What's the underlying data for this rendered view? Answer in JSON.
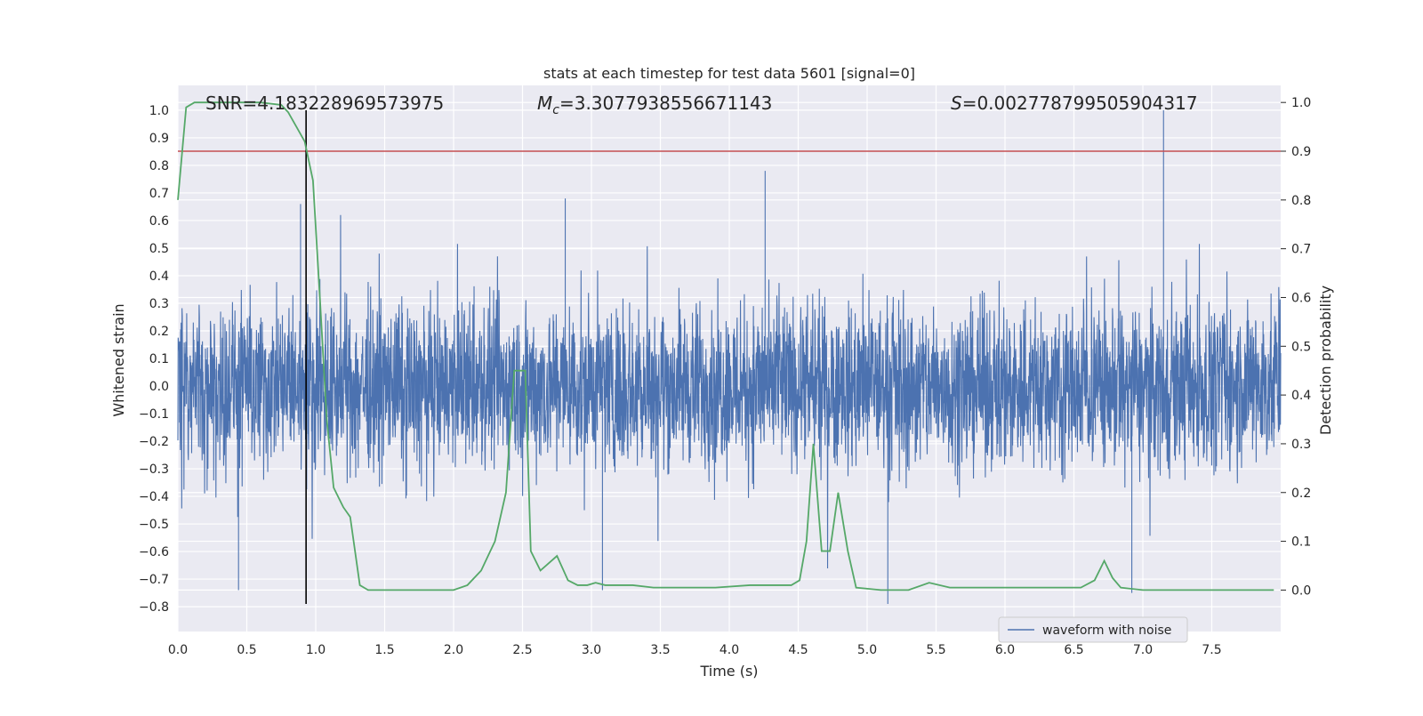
{
  "chart_data": {
    "type": "line",
    "title": "stats at each timestep for test data 5601 [signal=0]",
    "xlabel": "Time (s)",
    "ylabel": "Whitened strain",
    "ylabel_right": "Detection probability",
    "xlim": [
      0,
      8
    ],
    "ylim_left": [
      -0.89,
      1.09
    ],
    "ylim_right": [
      -0.085,
      1.035
    ],
    "x_ticks": [
      0.0,
      0.5,
      1.0,
      1.5,
      2.0,
      2.5,
      3.0,
      3.5,
      4.0,
      4.5,
      5.0,
      5.5,
      6.0,
      6.5,
      7.0,
      7.5
    ],
    "x_tick_labels": [
      "0.0",
      "0.5",
      "1.0",
      "1.5",
      "2.0",
      "2.5",
      "3.0",
      "3.5",
      "4.0",
      "4.5",
      "5.0",
      "5.5",
      "6.0",
      "6.5",
      "7.0",
      "7.5"
    ],
    "y_ticks_left": [
      -0.8,
      -0.7,
      -0.6,
      -0.5,
      -0.4,
      -0.3,
      -0.2,
      -0.1,
      0.0,
      0.1,
      0.2,
      0.3,
      0.4,
      0.5,
      0.6,
      0.7,
      0.8,
      0.9,
      1.0
    ],
    "y_tick_labels_left": [
      "−0.8",
      "−0.7",
      "−0.6",
      "−0.5",
      "−0.4",
      "−0.3",
      "−0.2",
      "−0.1",
      "0.0",
      "0.1",
      "0.2",
      "0.3",
      "0.4",
      "0.5",
      "0.6",
      "0.7",
      "0.8",
      "0.9",
      "1.0"
    ],
    "y_ticks_right": [
      0.0,
      0.1,
      0.2,
      0.3,
      0.4,
      0.5,
      0.6,
      0.7,
      0.8,
      0.9,
      1.0
    ],
    "y_tick_labels_right": [
      "0.0",
      "0.1",
      "0.2",
      "0.3",
      "0.4",
      "0.5",
      "0.6",
      "0.7",
      "0.8",
      "0.9",
      "1.0"
    ],
    "grid": true,
    "legend_position": "lower-right",
    "annotations": {
      "snr": "SNR=4.183228969573975",
      "mc_symbol": "M",
      "mc_sub": "c",
      "mc_value": "=3.3077938556671143",
      "s_symbol": "S",
      "s_value": "=0.002778799505904317"
    },
    "series": [
      {
        "name": "waveform with noise",
        "axis": "left",
        "color": "#4c72b0",
        "envelope_typical": [
          -0.27,
          0.29
        ],
        "sample_count": 4000,
        "notable_peaks": [
          {
            "x": 0.89,
            "y": 0.66
          },
          {
            "x": 0.44,
            "y": -0.74
          },
          {
            "x": 2.81,
            "y": 0.68
          },
          {
            "x": 3.08,
            "y": -0.74
          },
          {
            "x": 4.26,
            "y": 0.78
          },
          {
            "x": 5.15,
            "y": -0.79
          },
          {
            "x": 7.15,
            "y": 1.0
          },
          {
            "x": 6.92,
            "y": -0.75
          }
        ]
      },
      {
        "name": "detection probability",
        "axis": "right",
        "color": "#55a868",
        "x": [
          0.0,
          0.06,
          0.12,
          0.2,
          0.4,
          0.6,
          0.75,
          0.8,
          0.86,
          0.92,
          0.98,
          1.03,
          1.08,
          1.13,
          1.2,
          1.25,
          1.32,
          1.38,
          1.5,
          1.65,
          1.8,
          2.0,
          2.1,
          2.2,
          2.3,
          2.38,
          2.44,
          2.49,
          2.52,
          2.56,
          2.63,
          2.75,
          2.83,
          2.9,
          2.97,
          3.03,
          3.1,
          3.2,
          3.3,
          3.45,
          3.7,
          3.9,
          4.15,
          4.3,
          4.45,
          4.51,
          4.56,
          4.61,
          4.67,
          4.73,
          4.79,
          4.86,
          4.92,
          5.1,
          5.3,
          5.45,
          5.6,
          5.8,
          6.1,
          6.35,
          6.55,
          6.65,
          6.72,
          6.78,
          6.84,
          7.0,
          7.3,
          7.6,
          7.95
        ],
        "y": [
          0.8,
          0.99,
          1.0,
          1.0,
          1.0,
          1.0,
          0.995,
          0.98,
          0.95,
          0.92,
          0.84,
          0.6,
          0.35,
          0.21,
          0.17,
          0.15,
          0.01,
          0.0,
          0.0,
          0.0,
          0.0,
          0.0,
          0.01,
          0.04,
          0.1,
          0.2,
          0.45,
          0.45,
          0.45,
          0.08,
          0.04,
          0.07,
          0.02,
          0.01,
          0.01,
          0.015,
          0.01,
          0.01,
          0.01,
          0.005,
          0.005,
          0.005,
          0.01,
          0.01,
          0.01,
          0.02,
          0.1,
          0.3,
          0.08,
          0.08,
          0.2,
          0.08,
          0.005,
          0.0,
          0.0,
          0.015,
          0.005,
          0.005,
          0.005,
          0.005,
          0.005,
          0.02,
          0.06,
          0.025,
          0.005,
          0.0,
          0.0,
          0.0,
          0.0
        ]
      }
    ],
    "reference_lines": [
      {
        "orientation": "horizontal",
        "axis": "right",
        "value": 0.9,
        "color": "#c44e52"
      },
      {
        "orientation": "vertical",
        "value": 0.93,
        "from_left_y": -0.79,
        "to_left_y": 1.0,
        "color": "#000000"
      }
    ]
  }
}
